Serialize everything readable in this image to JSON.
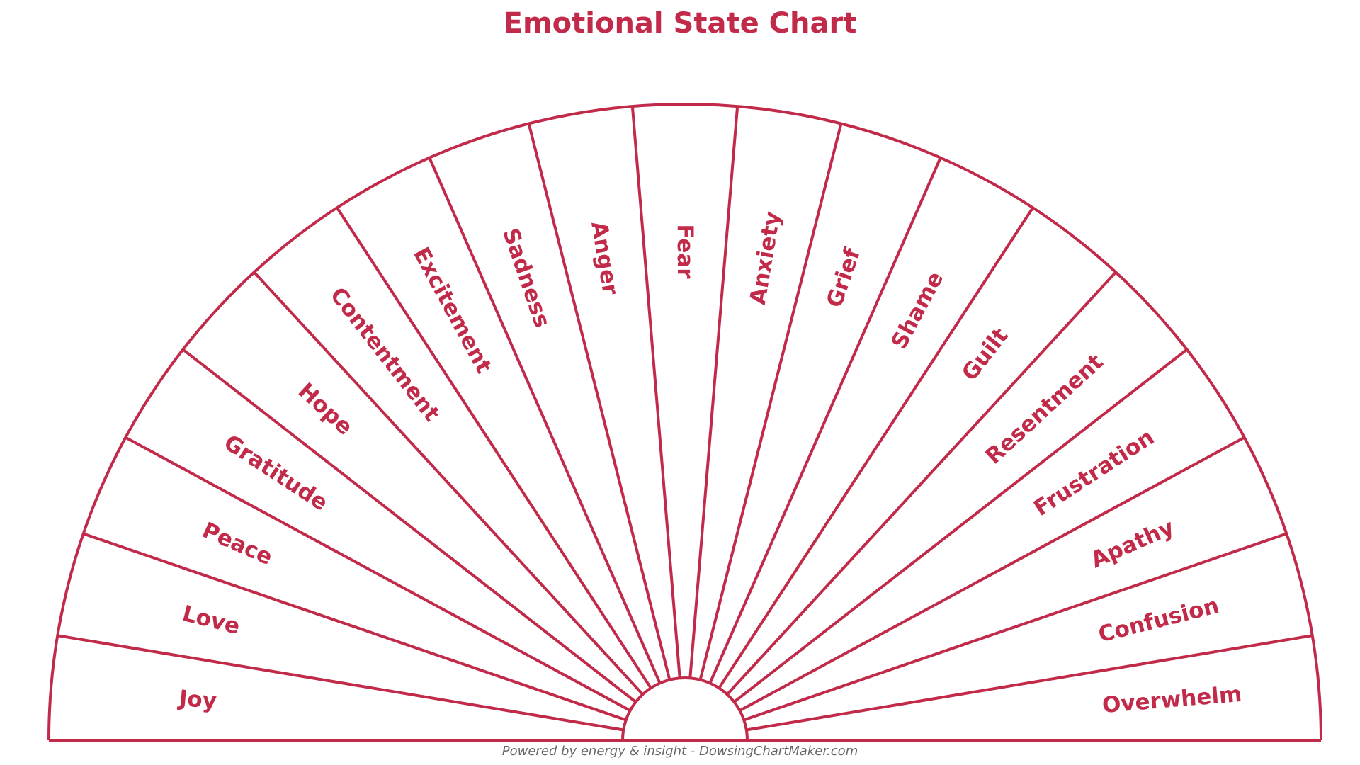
{
  "title": "Emotional State Chart",
  "footer": "Powered by energy & insight - DowsingChartMaker.com",
  "colors": {
    "accent": "#c22a4a",
    "footer_text": "#666666",
    "background": "#ffffff"
  },
  "segments": [
    {
      "label": "Joy"
    },
    {
      "label": "Love"
    },
    {
      "label": "Peace"
    },
    {
      "label": "Gratitude"
    },
    {
      "label": "Hope"
    },
    {
      "label": "Contentment"
    },
    {
      "label": "Excitement"
    },
    {
      "label": "Sadness"
    },
    {
      "label": "Anger"
    },
    {
      "label": "Fear"
    },
    {
      "label": "Anxiety"
    },
    {
      "label": "Grief"
    },
    {
      "label": "Shame"
    },
    {
      "label": "Guilt"
    },
    {
      "label": "Resentment"
    },
    {
      "label": "Frustration"
    },
    {
      "label": "Apathy"
    },
    {
      "label": "Confusion"
    },
    {
      "label": "Overwhelm"
    }
  ]
}
